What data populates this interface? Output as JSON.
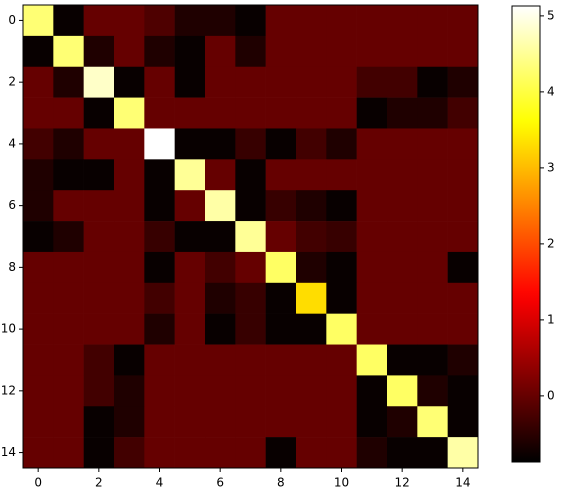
{
  "chart_data": {
    "type": "heatmap",
    "colormap": "hot",
    "xlim": [
      -0.5,
      14.5
    ],
    "ylim": [
      14.5,
      -0.5
    ],
    "xticks": [
      0,
      2,
      4,
      6,
      8,
      10,
      12,
      14
    ],
    "yticks": [
      0,
      2,
      4,
      6,
      8,
      10,
      12,
      14
    ],
    "clim": [
      -0.87,
      5.13
    ],
    "cticks": [
      0,
      1,
      2,
      3,
      4,
      5
    ],
    "values": [
      [
        4.3,
        -0.8,
        0,
        0,
        -0.2,
        -0.6,
        -0.6,
        -0.8,
        0,
        0,
        0,
        0,
        0,
        0,
        0
      ],
      [
        -0.8,
        4.3,
        -0.6,
        0,
        -0.6,
        -0.8,
        0,
        -0.6,
        0,
        0,
        0,
        0,
        0,
        0,
        0
      ],
      [
        0,
        -0.6,
        4.8,
        -0.8,
        0,
        -0.8,
        0,
        0,
        0,
        0,
        0,
        -0.3,
        -0.3,
        -0.8,
        -0.6
      ],
      [
        0,
        0,
        -0.8,
        4.3,
        0,
        0,
        0,
        0,
        0,
        0,
        0,
        -0.8,
        -0.6,
        -0.6,
        -0.3
      ],
      [
        -0.3,
        -0.6,
        0,
        0,
        5.13,
        -0.8,
        -0.8,
        -0.4,
        -0.8,
        -0.3,
        -0.6,
        0,
        0,
        0,
        0
      ],
      [
        -0.6,
        -0.8,
        -0.8,
        0,
        -0.8,
        4.5,
        0,
        -0.8,
        0,
        0,
        0,
        0,
        0,
        0,
        0
      ],
      [
        -0.6,
        0,
        0,
        0,
        -0.8,
        0,
        4.6,
        -0.8,
        -0.4,
        -0.6,
        -0.8,
        0,
        0,
        0,
        0
      ],
      [
        -0.8,
        -0.6,
        0,
        0,
        -0.4,
        -0.8,
        -0.8,
        4.5,
        0,
        -0.3,
        -0.4,
        0,
        0,
        0,
        0
      ],
      [
        0,
        0,
        0,
        0,
        -0.8,
        0,
        -0.3,
        0,
        4.2,
        -0.6,
        -0.8,
        0,
        0,
        0,
        -0.8
      ],
      [
        0,
        0,
        0,
        0,
        -0.3,
        0,
        -0.6,
        -0.4,
        -0.8,
        3.3,
        -0.8,
        0,
        0,
        0,
        0
      ],
      [
        0,
        0,
        0,
        0,
        -0.6,
        0,
        -0.8,
        -0.4,
        -0.8,
        -0.8,
        4.2,
        0,
        0,
        0,
        0
      ],
      [
        0,
        0,
        -0.3,
        -0.8,
        0,
        0,
        0,
        0,
        0,
        0,
        0,
        4.2,
        -0.8,
        -0.8,
        -0.6
      ],
      [
        0,
        0,
        -0.3,
        -0.6,
        0,
        0,
        0,
        0,
        0,
        0,
        0,
        -0.8,
        4.2,
        -0.6,
        -0.8
      ],
      [
        0,
        0,
        -0.8,
        -0.6,
        0,
        0,
        0,
        0,
        0,
        0,
        0,
        -0.8,
        -0.6,
        4.3,
        -0.8
      ],
      [
        0,
        0,
        -0.8,
        -0.3,
        0,
        0,
        0,
        0,
        -0.8,
        0,
        0,
        -0.6,
        -0.8,
        -0.8,
        4.6
      ]
    ]
  }
}
